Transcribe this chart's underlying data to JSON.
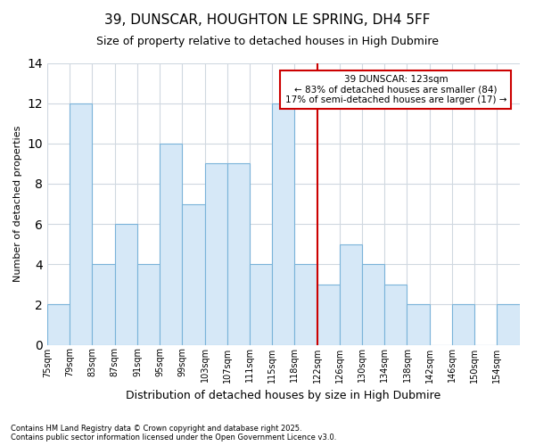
{
  "title1": "39, DUNSCAR, HOUGHTON LE SPRING, DH4 5FF",
  "title2": "Size of property relative to detached houses in High Dubmire",
  "xlabel": "Distribution of detached houses by size in High Dubmire",
  "ylabel": "Number of detached properties",
  "footnote1": "Contains HM Land Registry data © Crown copyright and database right 2025.",
  "footnote2": "Contains public sector information licensed under the Open Government Licence v3.0.",
  "bin_labels": [
    "75sqm",
    "79sqm",
    "83sqm",
    "87sqm",
    "91sqm",
    "95sqm",
    "99sqm",
    "103sqm",
    "107sqm",
    "111sqm",
    "115sqm",
    "118sqm",
    "122sqm",
    "126sqm",
    "130sqm",
    "134sqm",
    "138sqm",
    "142sqm",
    "146sqm",
    "150sqm",
    "154sqm"
  ],
  "values": [
    2,
    12,
    4,
    6,
    4,
    10,
    7,
    9,
    9,
    4,
    12,
    4,
    3,
    5,
    4,
    3,
    2,
    0,
    2,
    0,
    2
  ],
  "bar_facecolor": "#d6e8f7",
  "bar_edgecolor": "#7ab3d9",
  "grid_color": "#d0d8e0",
  "vline_color": "#cc0000",
  "annotation_text": "39 DUNSCAR: 123sqm\n← 83% of detached houses are smaller (84)\n17% of semi-detached houses are larger (17) →",
  "annotation_box_edgecolor": "#cc0000",
  "annotation_box_facecolor": "#ffffff",
  "ylim": [
    0,
    14
  ],
  "yticks": [
    0,
    2,
    4,
    6,
    8,
    10,
    12,
    14
  ],
  "background_color": "#ffffff",
  "title_fontsize": 11,
  "subtitle_fontsize": 9,
  "figsize": [
    6.0,
    5.0
  ],
  "dpi": 100,
  "vline_bin_index": 12
}
